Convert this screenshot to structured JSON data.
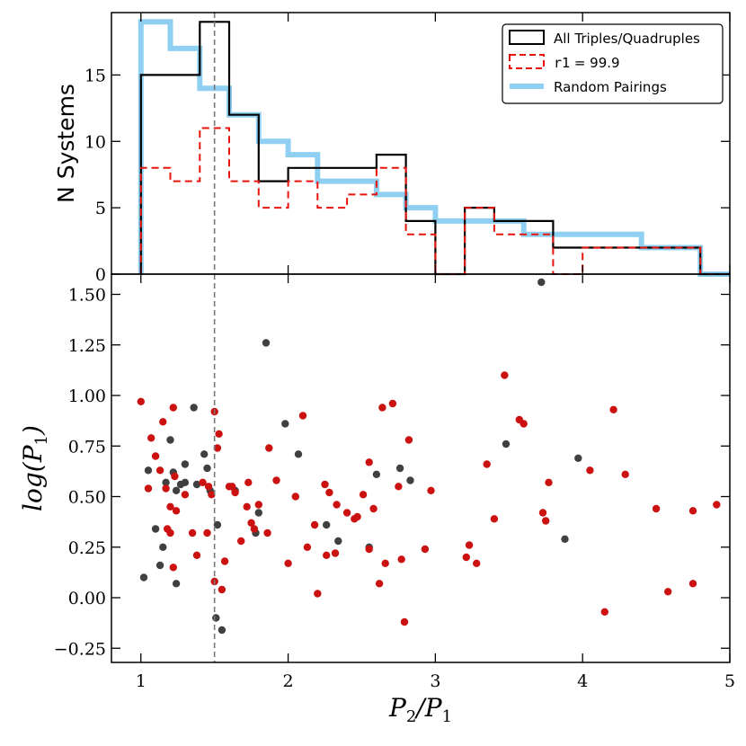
{
  "chart_data": [
    {
      "type": "histogram",
      "ylabel": "N Systems",
      "xlim": [
        0.8,
        5.0
      ],
      "ylim": [
        0,
        19.7
      ],
      "yticks": [
        0,
        5,
        10,
        15
      ],
      "bin_edges": [
        1.0,
        1.2,
        1.4,
        1.6,
        1.8,
        2.0,
        2.2,
        2.4,
        2.6,
        2.8,
        3.0,
        3.2,
        3.4,
        3.6,
        3.8,
        4.0,
        4.2,
        4.4,
        4.6,
        4.8,
        5.0
      ],
      "series": [
        {
          "name": "All Triples/Quadruples",
          "style": "solid",
          "color": "#000000",
          "values": [
            15,
            15,
            19,
            12,
            7,
            8,
            8,
            8,
            9,
            4,
            0,
            5,
            4,
            4,
            2,
            2,
            2,
            2,
            2,
            0
          ]
        },
        {
          "name": "r1 = 99.9",
          "label_code": "r1",
          "label_math": " = 99.9",
          "style": "dashed",
          "color": "#e8140c",
          "values": [
            8,
            7,
            11,
            7,
            5,
            7,
            5,
            6,
            8,
            3,
            0,
            5,
            3,
            3,
            0,
            2,
            2,
            2,
            2,
            0
          ]
        },
        {
          "name": "Random Pairings",
          "style": "thick",
          "color": "#8fd0f2",
          "values": [
            19,
            17,
            14,
            12,
            10,
            9,
            7,
            7,
            6,
            5,
            4,
            4,
            4,
            3,
            3,
            3,
            3,
            2,
            2,
            0
          ]
        }
      ],
      "legend_position": "top-right",
      "reference_line_x": 1.5
    },
    {
      "type": "scatter",
      "xlabel": "P2/P1",
      "ylabel": "log(P1)",
      "xlim": [
        0.8,
        5.0
      ],
      "ylim": [
        -0.32,
        1.6
      ],
      "xticks": [
        1,
        2,
        3,
        4,
        5
      ],
      "yticks": [
        -0.25,
        0.0,
        0.25,
        0.5,
        0.75,
        1.0,
        1.25,
        1.5
      ],
      "ytick_labels": [
        "−0.25",
        "0.00",
        "0.25",
        "0.50",
        "0.75",
        "1.00",
        "1.25",
        "1.50"
      ],
      "reference_line_x": 1.5,
      "series": [
        {
          "name": "all",
          "color": "#404040",
          "points": [
            [
              1.02,
              0.1
            ],
            [
              1.05,
              0.63
            ],
            [
              1.1,
              0.34
            ],
            [
              1.13,
              0.16
            ],
            [
              1.15,
              0.25
            ],
            [
              1.17,
              0.57
            ],
            [
              1.2,
              0.78
            ],
            [
              1.22,
              0.62
            ],
            [
              1.24,
              0.07
            ],
            [
              1.24,
              0.53
            ],
            [
              1.27,
              0.56
            ],
            [
              1.3,
              0.57
            ],
            [
              1.3,
              0.66
            ],
            [
              1.36,
              0.94
            ],
            [
              1.38,
              0.56
            ],
            [
              1.43,
              0.71
            ],
            [
              1.45,
              0.64
            ],
            [
              1.47,
              0.53
            ],
            [
              1.52,
              0.36
            ],
            [
              1.51,
              -0.1
            ],
            [
              1.55,
              -0.16
            ],
            [
              1.64,
              0.53
            ],
            [
              1.78,
              0.32
            ],
            [
              1.8,
              0.42
            ],
            [
              1.85,
              1.26
            ],
            [
              1.98,
              0.86
            ],
            [
              2.07,
              0.71
            ],
            [
              2.26,
              0.36
            ],
            [
              2.34,
              0.28
            ],
            [
              2.55,
              0.25
            ],
            [
              2.6,
              0.61
            ],
            [
              2.76,
              0.64
            ],
            [
              2.83,
              0.58
            ],
            [
              3.48,
              0.76
            ],
            [
              3.72,
              1.56
            ],
            [
              3.88,
              0.29
            ],
            [
              3.97,
              0.69
            ]
          ]
        },
        {
          "name": "r1 = 99.9",
          "color": "#cc1111",
          "points": [
            [
              1.0,
              0.97
            ],
            [
              1.05,
              0.54
            ],
            [
              1.07,
              0.79
            ],
            [
              1.1,
              0.7
            ],
            [
              1.13,
              0.63
            ],
            [
              1.15,
              0.87
            ],
            [
              1.17,
              0.54
            ],
            [
              1.18,
              0.34
            ],
            [
              1.2,
              0.45
            ],
            [
              1.2,
              0.32
            ],
            [
              1.22,
              0.94
            ],
            [
              1.22,
              0.15
            ],
            [
              1.23,
              0.6
            ],
            [
              1.24,
              0.43
            ],
            [
              1.3,
              0.51
            ],
            [
              1.35,
              0.32
            ],
            [
              1.38,
              0.21
            ],
            [
              1.42,
              0.57
            ],
            [
              1.45,
              0.32
            ],
            [
              1.46,
              0.55
            ],
            [
              1.48,
              0.51
            ],
            [
              1.5,
              0.92
            ],
            [
              1.5,
              0.08
            ],
            [
              1.52,
              0.74
            ],
            [
              1.53,
              0.81
            ],
            [
              1.55,
              0.04
            ],
            [
              1.57,
              0.18
            ],
            [
              1.6,
              0.55
            ],
            [
              1.62,
              0.55
            ],
            [
              1.64,
              0.52
            ],
            [
              1.68,
              0.28
            ],
            [
              1.72,
              0.45
            ],
            [
              1.73,
              0.57
            ],
            [
              1.75,
              0.37
            ],
            [
              1.77,
              0.34
            ],
            [
              1.8,
              0.46
            ],
            [
              1.86,
              0.32
            ],
            [
              1.87,
              0.74
            ],
            [
              1.92,
              0.58
            ],
            [
              2.0,
              0.17
            ],
            [
              2.05,
              0.5
            ],
            [
              2.1,
              0.9
            ],
            [
              2.13,
              0.25
            ],
            [
              2.18,
              0.36
            ],
            [
              2.2,
              0.02
            ],
            [
              2.25,
              0.56
            ],
            [
              2.26,
              0.21
            ],
            [
              2.28,
              0.52
            ],
            [
              2.32,
              0.22
            ],
            [
              2.33,
              0.46
            ],
            [
              2.4,
              0.42
            ],
            [
              2.45,
              0.39
            ],
            [
              2.47,
              0.4
            ],
            [
              2.51,
              0.51
            ],
            [
              2.55,
              0.67
            ],
            [
              2.55,
              0.24
            ],
            [
              2.58,
              0.44
            ],
            [
              2.62,
              0.07
            ],
            [
              2.64,
              0.94
            ],
            [
              2.66,
              0.17
            ],
            [
              2.71,
              0.96
            ],
            [
              2.75,
              0.55
            ],
            [
              2.77,
              0.19
            ],
            [
              2.79,
              -0.12
            ],
            [
              2.82,
              0.78
            ],
            [
              2.93,
              0.24
            ],
            [
              2.97,
              0.53
            ],
            [
              3.21,
              0.2
            ],
            [
              3.23,
              0.26
            ],
            [
              3.28,
              0.17
            ],
            [
              3.35,
              0.66
            ],
            [
              3.4,
              0.39
            ],
            [
              3.47,
              1.1
            ],
            [
              3.57,
              0.88
            ],
            [
              3.6,
              0.86
            ],
            [
              3.73,
              0.42
            ],
            [
              3.75,
              0.38
            ],
            [
              3.77,
              0.57
            ],
            [
              4.05,
              0.63
            ],
            [
              4.15,
              -0.07
            ],
            [
              4.21,
              0.93
            ],
            [
              4.29,
              0.61
            ],
            [
              4.5,
              0.44
            ],
            [
              4.58,
              0.03
            ],
            [
              4.75,
              0.43
            ],
            [
              4.75,
              0.07
            ],
            [
              4.91,
              0.46
            ]
          ]
        }
      ]
    }
  ]
}
